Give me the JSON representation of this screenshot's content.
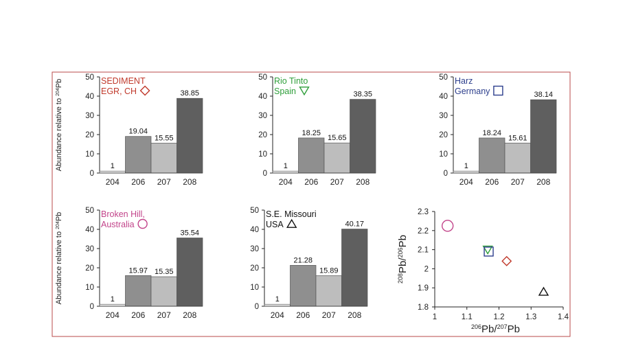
{
  "colors": {
    "frame": "#b84a4a",
    "bar_204": "#f2f2f2",
    "bar_206": "#8f8f8f",
    "bar_207": "#bdbdbd",
    "bar_208": "#5f5f5f"
  },
  "chart_data": [
    {
      "type": "bar",
      "title": "SEDIMENT EGR, CH",
      "title_lines": [
        "SEDIMENT",
        "EGR, CH"
      ],
      "title_color": "#c0392b",
      "marker": "diamond",
      "ylabel": "Abundance relative to 204Pb",
      "ylim": [
        0,
        50
      ],
      "yticks": [
        0,
        10,
        20,
        30,
        40,
        50
      ],
      "categories": [
        "204",
        "206",
        "207",
        "208"
      ],
      "values": [
        1,
        19.04,
        15.55,
        38.85
      ],
      "value_labels": [
        "1",
        "19.04",
        "15.55",
        "38.85"
      ]
    },
    {
      "type": "bar",
      "title": "Rio Tinto Spain",
      "title_lines": [
        "Rio Tinto",
        "Spain"
      ],
      "title_color": "#2e9e3a",
      "marker": "triangle-down",
      "ylabel": "",
      "ylim": [
        0,
        50
      ],
      "yticks": [
        0,
        10,
        20,
        30,
        40,
        50
      ],
      "categories": [
        "204",
        "206",
        "207",
        "208"
      ],
      "values": [
        1,
        18.25,
        15.65,
        38.35
      ],
      "value_labels": [
        "1",
        "18.25",
        "15.65",
        "38.35"
      ]
    },
    {
      "type": "bar",
      "title": "Harz Germany",
      "title_lines": [
        "Harz",
        "Germany"
      ],
      "title_color": "#2c3e8c",
      "marker": "square",
      "ylabel": "",
      "ylim": [
        0,
        50
      ],
      "yticks": [
        0,
        10,
        20,
        30,
        40,
        50
      ],
      "categories": [
        "204",
        "206",
        "207",
        "208"
      ],
      "values": [
        1,
        18.24,
        15.61,
        38.14
      ],
      "value_labels": [
        "1",
        "18.24",
        "15.61",
        "38.14"
      ]
    },
    {
      "type": "bar",
      "title": "Broken Hill, Australia",
      "title_lines": [
        "Broken Hill,",
        "Australia"
      ],
      "title_color": "#c2448a",
      "marker": "circle",
      "ylabel": "Abundance relative to 204Pb",
      "ylim": [
        0,
        50
      ],
      "yticks": [
        0,
        10,
        20,
        30,
        40,
        50
      ],
      "categories": [
        "204",
        "206",
        "207",
        "208"
      ],
      "values": [
        1,
        15.97,
        15.35,
        35.54
      ],
      "value_labels": [
        "1",
        "15.97",
        "15.35",
        "35.54"
      ]
    },
    {
      "type": "bar",
      "title": "S.E. Missouri USA",
      "title_lines": [
        "S.E. Missouri",
        "USA"
      ],
      "title_color": "#111111",
      "marker": "triangle-up",
      "ylabel": "",
      "ylim": [
        0,
        50
      ],
      "yticks": [
        0,
        10,
        20,
        30,
        40,
        50
      ],
      "categories": [
        "204",
        "206",
        "207",
        "208"
      ],
      "values": [
        1,
        21.28,
        15.89,
        40.17
      ],
      "value_labels": [
        "1",
        "21.28",
        "15.89",
        "40.17"
      ]
    },
    {
      "type": "scatter",
      "xlabel": "206Pb/207Pb",
      "ylabel": "208Pb/206Pb",
      "xlim": [
        1,
        1.4
      ],
      "ylim": [
        1.8,
        2.3
      ],
      "xticks": [
        "1",
        "1.1",
        "1.2",
        "1.3",
        "1.4"
      ],
      "yticks": [
        "1.8",
        "1.9",
        "2",
        "2.1",
        "2.2",
        "2.3"
      ],
      "points": [
        {
          "name": "SEDIMENT EGR, CH",
          "x": 1.224,
          "y": 2.04,
          "marker": "diamond",
          "color": "#c0392b"
        },
        {
          "name": "Rio Tinto Spain",
          "x": 1.165,
          "y": 2.1,
          "marker": "triangle-down",
          "color": "#2e9e3a"
        },
        {
          "name": "Harz Germany",
          "x": 1.168,
          "y": 2.09,
          "marker": "square",
          "color": "#2c3e8c"
        },
        {
          "name": "Broken Hill, Australia",
          "x": 1.04,
          "y": 2.225,
          "marker": "circle",
          "color": "#c2448a"
        },
        {
          "name": "S.E. Missouri USA",
          "x": 1.339,
          "y": 1.88,
          "marker": "triangle-up",
          "color": "#111111"
        }
      ]
    }
  ]
}
